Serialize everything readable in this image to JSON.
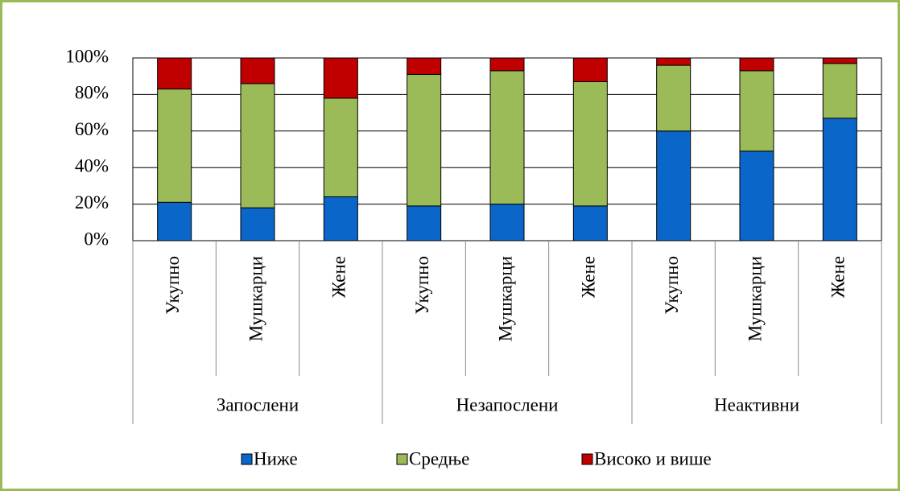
{
  "chart_data": {
    "type": "stacked_bar",
    "groups": [
      {
        "name": "Запослени",
        "categories": [
          "Укупно",
          "Мушкарци",
          "Жене"
        ]
      },
      {
        "name": "Незапослени",
        "categories": [
          "Укупно",
          "Мушкарци",
          "Жене"
        ]
      },
      {
        "name": "Неактивни",
        "categories": [
          "Укупно",
          "Мушкарци",
          "Жене"
        ]
      }
    ],
    "series": [
      {
        "name": "Ниже",
        "color": "#0a66c8",
        "values": [
          21,
          18,
          24,
          19,
          20,
          19,
          60,
          49,
          67
        ]
      },
      {
        "name": "Средње",
        "color": "#9bbb59",
        "values": [
          62,
          68,
          54,
          72,
          73,
          68,
          36,
          44,
          30
        ]
      },
      {
        "name": "Високо и више",
        "color": "#c00000",
        "values": [
          17,
          14,
          22,
          9,
          7,
          13,
          4,
          7,
          3
        ]
      }
    ],
    "ylim": [
      0,
      100
    ],
    "yticks": [
      {
        "value": 0,
        "label": "0%"
      },
      {
        "value": 20,
        "label": "20%"
      },
      {
        "value": 40,
        "label": "40%"
      },
      {
        "value": 60,
        "label": "60%"
      },
      {
        "value": 80,
        "label": "80%"
      },
      {
        "value": 100,
        "label": "100%"
      }
    ],
    "grid": true,
    "legend": "bottom"
  }
}
